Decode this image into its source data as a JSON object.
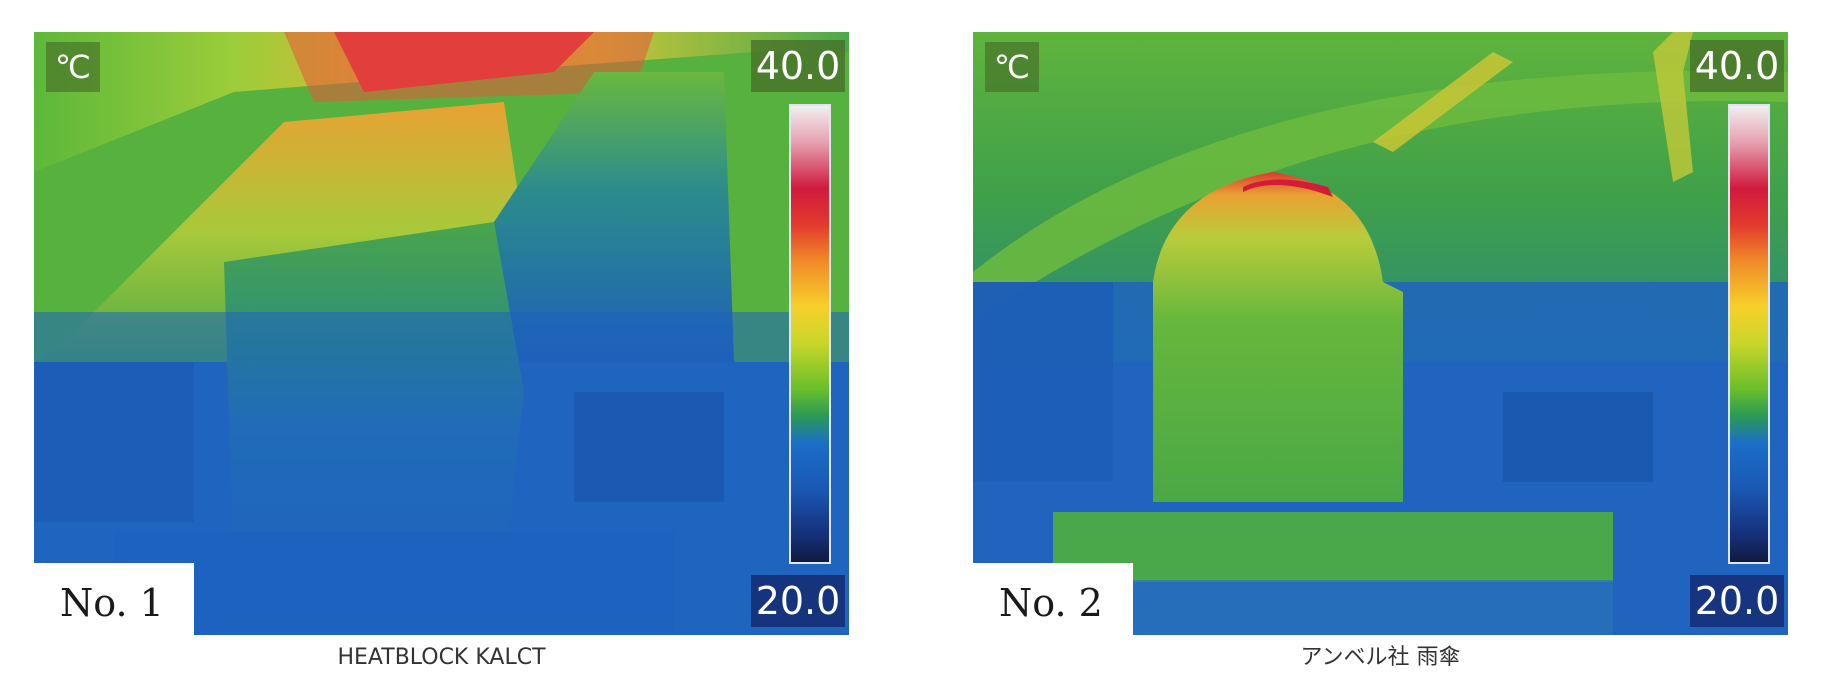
{
  "images": [
    {
      "label": "No. 1",
      "unit": "℃",
      "scale_max": "40.0",
      "scale_min": "20.0",
      "caption": "HEATBLOCK KALCT"
    },
    {
      "label": "No. 2",
      "unit": "℃",
      "scale_max": "40.0",
      "scale_min": "20.0",
      "caption": "アンベル社 雨傘"
    }
  ]
}
